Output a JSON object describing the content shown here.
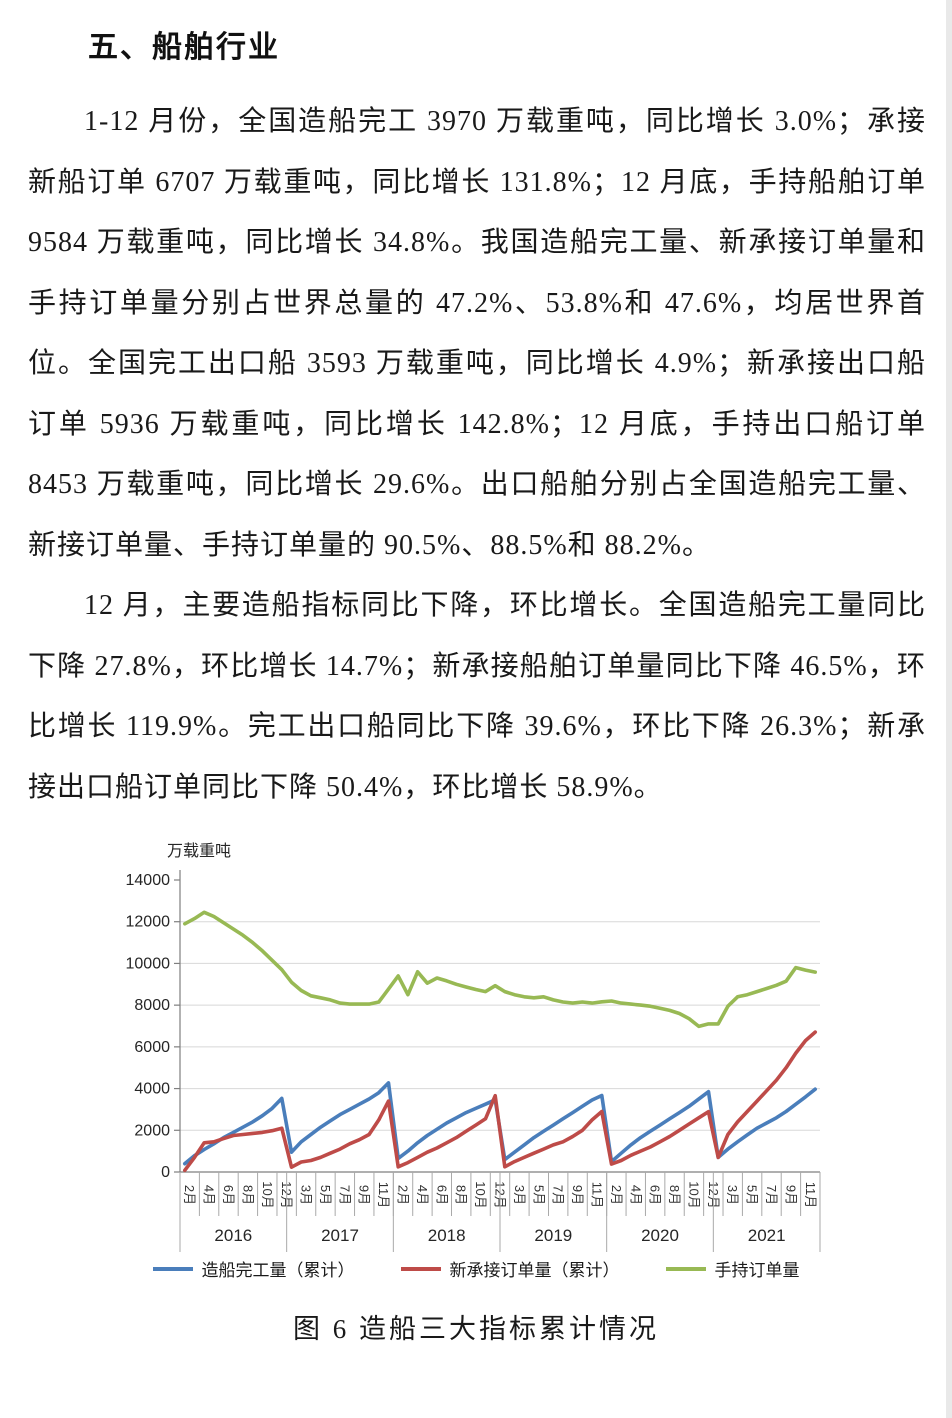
{
  "heading": "五、船舶行业",
  "paragraphs": [
    "1-12 月份，全国造船完工 3970 万载重吨，同比增长 3.0%；承接新船订单 6707 万载重吨，同比增长 131.8%；12 月底，手持船舶订单 9584 万载重吨，同比增长 34.8%。我国造船完工量、新承接订单量和手持订单量分别占世界总量的 47.2%、53.8%和 47.6%，均居世界首位。全国完工出口船 3593 万载重吨，同比增长 4.9%；新承接出口船订单 5936 万载重吨，同比增长 142.8%；12 月底，手持出口船订单 8453 万载重吨，同比增长 29.6%。出口船舶分别占全国造船完工量、新接订单量、手持订单量的 90.5%、88.5%和 88.2%。",
    "12 月，主要造船指标同比下降，环比增长。全国造船完工量同比下降 27.8%，环比增长 14.7%；新承接船舶订单量同比下降 46.5%，环比增长 119.9%。完工出口船同比下降 39.6%，环比下降 26.3%；新承接出口船订单同比下降 50.4%，环比增长 58.9%。"
  ],
  "chart_data": {
    "type": "line",
    "unit_label": "万载重吨",
    "caption": "图 6  造船三大指标累计情况",
    "ylim": [
      0,
      14000
    ],
    "y_ticks": [
      0,
      2000,
      4000,
      6000,
      8000,
      10000,
      12000,
      14000
    ],
    "grid": true,
    "legend_position": "bottom",
    "x_month_labels": [
      "2月",
      "4月",
      "6月",
      "8月",
      "10月",
      "12月",
      "3月",
      "5月",
      "7月",
      "9月",
      "11月",
      "2月",
      "4月",
      "6月",
      "8月",
      "10月",
      "12月",
      "3月",
      "5月",
      "7月",
      "9月",
      "11月",
      "2月",
      "4月",
      "6月",
      "8月",
      "10月",
      "12月",
      "3月",
      "5月",
      "7月",
      "9月",
      "11月"
    ],
    "year_labels": [
      "2016",
      "2017",
      "2018",
      "2019",
      "2020",
      "2021"
    ],
    "months_per_year": 11,
    "series": [
      {
        "id": "completed",
        "name": "造船完工量（累计）",
        "color": "#4a7ebb",
        "values": [
          400,
          780,
          1080,
          1350,
          1650,
          1900,
          2150,
          2400,
          2700,
          3050,
          3530,
          950,
          1450,
          1800,
          2150,
          2450,
          2750,
          3000,
          3250,
          3500,
          3800,
          4270,
          650,
          1000,
          1400,
          1750,
          2050,
          2350,
          2600,
          2850,
          3050,
          3250,
          3460,
          600,
          950,
          1300,
          1650,
          1950,
          2250,
          2550,
          2850,
          3150,
          3450,
          3670,
          500,
          900,
          1300,
          1650,
          1950,
          2250,
          2550,
          2850,
          3150,
          3500,
          3850,
          700,
          1100,
          1450,
          1780,
          2100,
          2350,
          2600,
          2900,
          3250,
          3600,
          3970
        ]
      },
      {
        "id": "new-orders",
        "name": "新承接订单量（累计）",
        "color": "#be4b48",
        "values": [
          80,
          700,
          1400,
          1450,
          1600,
          1750,
          1800,
          1850,
          1900,
          1980,
          2100,
          230,
          480,
          550,
          700,
          900,
          1100,
          1350,
          1550,
          1800,
          2500,
          3400,
          250,
          450,
          700,
          950,
          1150,
          1400,
          1650,
          1950,
          2250,
          2550,
          3660,
          250,
          500,
          700,
          900,
          1100,
          1300,
          1450,
          1700,
          2000,
          2500,
          2900,
          380,
          550,
          800,
          1000,
          1200,
          1450,
          1700,
          2000,
          2300,
          2600,
          2890,
          700,
          1800,
          2400,
          2900,
          3400,
          3900,
          4400,
          5000,
          5700,
          6300,
          6707
        ]
      },
      {
        "id": "orders-on-hand",
        "name": "手持订单量",
        "color": "#98b954",
        "values": [
          11900,
          12150,
          12450,
          12250,
          11950,
          11650,
          11350,
          11000,
          10600,
          10150,
          9700,
          9100,
          8700,
          8450,
          8350,
          8250,
          8100,
          8050,
          8050,
          8050,
          8150,
          8770,
          9400,
          8500,
          9600,
          9050,
          9300,
          9160,
          9000,
          8870,
          8750,
          8650,
          8930,
          8650,
          8500,
          8400,
          8350,
          8400,
          8250,
          8150,
          8100,
          8150,
          8100,
          8160,
          8200,
          8100,
          8050,
          8000,
          7950,
          7850,
          7750,
          7600,
          7350,
          6980,
          7100,
          7100,
          7950,
          8400,
          8500,
          8650,
          8800,
          8950,
          9150,
          9800,
          9680,
          9584
        ]
      }
    ]
  }
}
